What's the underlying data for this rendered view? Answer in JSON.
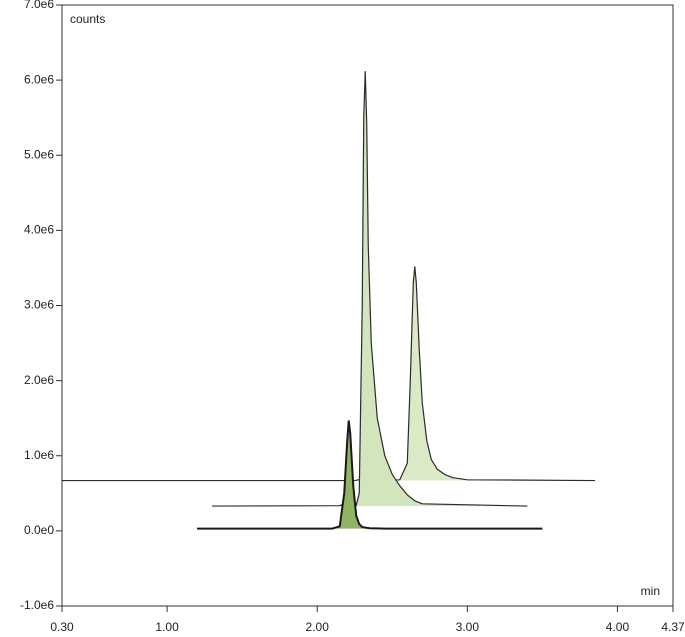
{
  "chart_data": {
    "type": "line",
    "y_label": "counts",
    "x_label": "min",
    "xlim": [
      0.3,
      4.37
    ],
    "xticks": [
      {
        "value": 0.3,
        "label": "0.30"
      },
      {
        "value": 1,
        "label": "1.00"
      },
      {
        "value": 2,
        "label": "2.00"
      },
      {
        "value": 3,
        "label": "3.00"
      },
      {
        "value": 4,
        "label": "4.00"
      },
      4.37
    ],
    "ylim": [
      -1000000,
      7000000
    ],
    "yticks": [
      {
        "value": -1000000,
        "label": "-1.0e6"
      },
      {
        "value": 0,
        "label": "0.0e0"
      },
      {
        "value": 1000000,
        "label": "1.0e6"
      },
      {
        "value": 2000000,
        "label": "2.0e6"
      },
      {
        "value": 3000000,
        "label": "3.0e6"
      },
      {
        "value": 4000000,
        "label": "4.0e6"
      },
      {
        "value": 5000000,
        "label": "5.0e6"
      },
      {
        "value": 6000000,
        "label": "6.0e6"
      },
      {
        "value": 7000000,
        "label": "7.0e6"
      }
    ],
    "series": [
      {
        "color": "#2b2b2b",
        "fill": "#dbe9c7",
        "width": 1.2,
        "x": [
          0.3,
          2.25,
          2.3,
          2.32,
          2.34,
          2.4,
          2.55,
          2.6,
          2.62,
          2.64,
          2.65,
          2.66,
          2.68,
          2.7,
          2.73,
          2.76,
          2.8,
          2.85,
          2.9,
          3.0,
          3.85
        ],
        "values": [
          670000,
          670000,
          690000,
          700000,
          690000,
          675000,
          680000,
          900000,
          2000000,
          3300000,
          3520000,
          3300000,
          2400000,
          1700000,
          1200000,
          950000,
          820000,
          750000,
          710000,
          680000,
          670000
        ]
      },
      {
        "color": "#2b2b2b",
        "fill": "#d3e5bc",
        "width": 1.2,
        "x": [
          1.3,
          2.15,
          2.19,
          2.21,
          2.23,
          2.26,
          2.28,
          2.3,
          2.31,
          2.32,
          2.33,
          2.34,
          2.36,
          2.4,
          2.45,
          2.5,
          2.55,
          2.6,
          2.65,
          2.7,
          3.4
        ],
        "values": [
          330000,
          335000,
          370000,
          420000,
          380000,
          340000,
          500000,
          3000000,
          5500000,
          6120000,
          5400000,
          3800000,
          2500000,
          1500000,
          1000000,
          750000,
          600000,
          480000,
          400000,
          360000,
          330000
        ]
      },
      {
        "color": "#1a1a1a",
        "fill": "#8fb463",
        "width": 2,
        "x": [
          1.2,
          2.1,
          2.15,
          2.18,
          2.2,
          2.21,
          2.22,
          2.24,
          2.26,
          2.28,
          2.3,
          2.35,
          2.45,
          3.5
        ],
        "values": [
          30000,
          30000,
          60000,
          500000,
          1200000,
          1470000,
          1300000,
          600000,
          200000,
          90000,
          50000,
          35000,
          30000,
          30000
        ]
      }
    ]
  }
}
